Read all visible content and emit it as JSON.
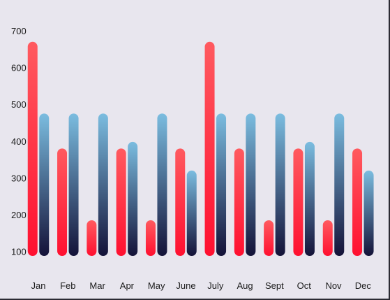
{
  "chart_data": {
    "type": "bar",
    "categories": [
      "Jan",
      "Feb",
      "Mar",
      "Apr",
      "May",
      "June",
      "July",
      "Aug",
      "Sept",
      "Oct",
      "Nov",
      "Dec"
    ],
    "series": [
      {
        "values": [
          670,
          380,
          185,
          380,
          185,
          380,
          670,
          380,
          185,
          380,
          185,
          380
        ]
      },
      {
        "values": [
          475,
          475,
          475,
          398,
          475,
          320,
          475,
          475,
          475,
          398,
          475,
          320
        ]
      }
    ],
    "y_ticks": [
      "700",
      "600",
      "500",
      "400",
      "300",
      "200",
      "100"
    ],
    "ylim": [
      88,
      700
    ],
    "grid": false,
    "colors": {
      "series_a_top": "#ff5a5f",
      "series_a_bottom": "#ff1030",
      "series_b_top": "#7bbde0",
      "series_b_bottom": "#141238",
      "background": "#e8e6ee",
      "text": "#1a1a1a"
    }
  }
}
